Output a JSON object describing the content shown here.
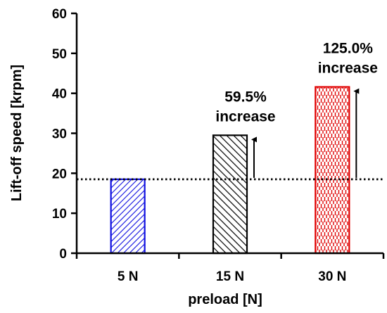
{
  "chart_data": {
    "type": "bar",
    "title": "",
    "xlabel": "preload [N]",
    "ylabel": "Lift-off speed [krpm]",
    "ylim": [
      0,
      60
    ],
    "yticks": [
      0,
      10,
      20,
      30,
      40,
      50,
      60
    ],
    "categories": [
      "5 N",
      "15 N",
      "30 N"
    ],
    "values": [
      18.5,
      29.5,
      41.6
    ],
    "bar_styles": [
      {
        "color": "#1010e0",
        "pattern": "diagonal-hatch-dense"
      },
      {
        "color": "#000000",
        "pattern": "diagonal-hatch"
      },
      {
        "color": "#e00000",
        "pattern": "vertical-dashes"
      }
    ],
    "reference_line": {
      "value": 18.5,
      "style": "dotted"
    },
    "annotations": [
      {
        "category_index": 1,
        "line1": "59.5%",
        "line2": "increase"
      },
      {
        "category_index": 2,
        "line1": "125.0%",
        "line2": "increase"
      }
    ],
    "grid": false,
    "legend": "none"
  }
}
